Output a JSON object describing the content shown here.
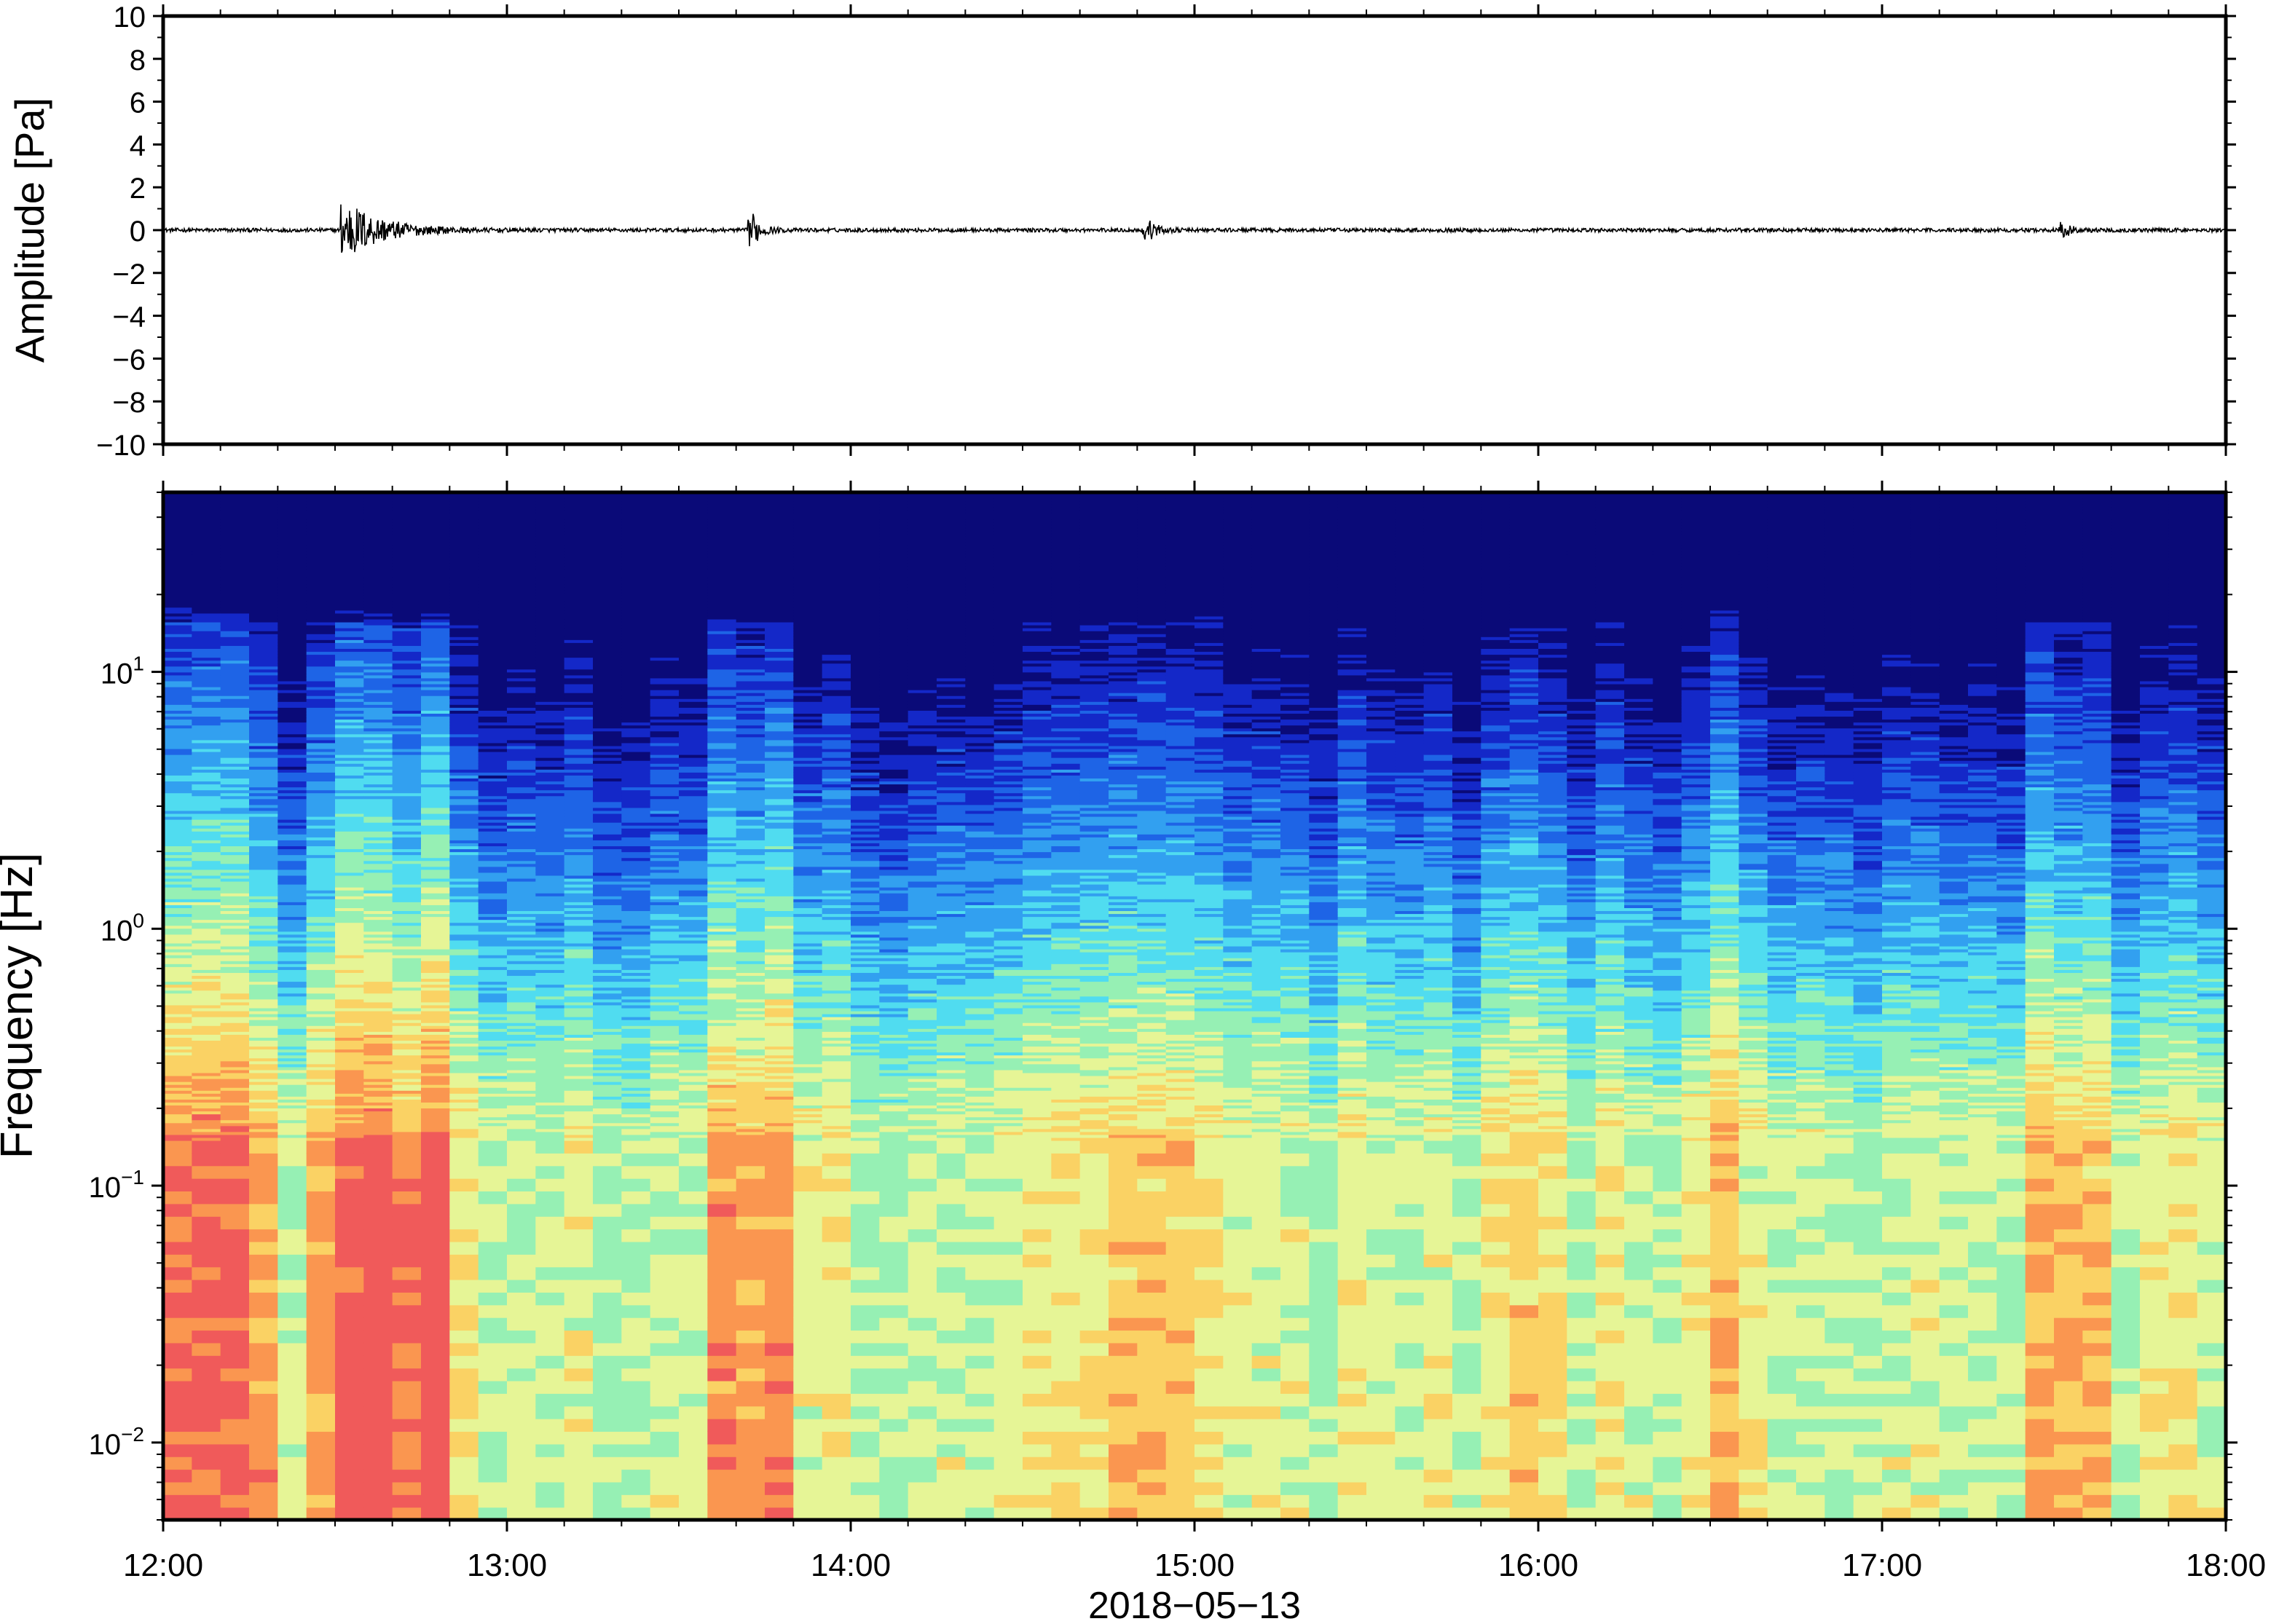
{
  "chart_data": [
    {
      "type": "line",
      "panel": "waveform",
      "title": "",
      "xlabel": "",
      "ylabel": "Amplitude [Pa]",
      "xlim": [
        "12:00",
        "18:00"
      ],
      "ylim": [
        -10,
        10
      ],
      "y_ticks": [
        {
          "value": 10,
          "label": "10"
        },
        {
          "value": 8,
          "label": "8"
        },
        {
          "value": 6,
          "label": "6"
        },
        {
          "value": 4,
          "label": "4"
        },
        {
          "value": 2,
          "label": "2"
        },
        {
          "value": 0,
          "label": "0"
        },
        {
          "value": -2,
          "label": "−2"
        },
        {
          "value": -4,
          "label": "−4"
        },
        {
          "value": -6,
          "label": "−6"
        },
        {
          "value": -8,
          "label": "−8"
        },
        {
          "value": -10,
          "label": "−10"
        }
      ],
      "grid": false,
      "line_color": "#000000",
      "events": [
        {
          "time": "12:32",
          "peak_pa": 1.4
        },
        {
          "time": "13:43",
          "peak_pa": 0.7
        },
        {
          "time": "14:52",
          "peak_pa": 0.5
        },
        {
          "time": "17:32",
          "peak_pa": 0.3
        }
      ]
    },
    {
      "type": "heatmap",
      "panel": "spectrogram",
      "title": "",
      "xlabel": "2018−05−13",
      "ylabel": "Frequency [Hz]",
      "y_scale": "log",
      "ylim": [
        0.005,
        50
      ],
      "x_ticks": [
        "12:00",
        "13:00",
        "14:00",
        "15:00",
        "16:00",
        "17:00",
        "18:00"
      ],
      "y_ticks": [
        {
          "value": 10,
          "base": "10",
          "exp": "1"
        },
        {
          "value": 1,
          "base": "10",
          "exp": "0"
        },
        {
          "value": 0.1,
          "base": "10",
          "exp": "−1"
        },
        {
          "value": 0.01,
          "base": "10",
          "exp": "−2"
        }
      ],
      "colormap": [
        "#0a0a78",
        "#1428c8",
        "#1e64e6",
        "#32a0f0",
        "#50dcf0",
        "#96f0b4",
        "#e6f596",
        "#fad264",
        "#fa9650",
        "#f05a5a"
      ],
      "time_columns": 72,
      "energy_bursts": [
        {
          "start": "12:00",
          "end": "12:20",
          "strength": 0.8
        },
        {
          "start": "12:25",
          "end": "12:40",
          "strength": 0.7
        },
        {
          "start": "12:30",
          "end": "12:48",
          "strength": 1.0
        },
        {
          "start": "13:35",
          "end": "13:48",
          "strength": 0.8
        },
        {
          "start": "14:47",
          "end": "14:58",
          "strength": 0.6
        },
        {
          "start": "15:55",
          "end": "16:05",
          "strength": 0.4
        },
        {
          "start": "16:28",
          "end": "16:35",
          "strength": 0.4
        },
        {
          "start": "17:27",
          "end": "17:38",
          "strength": 0.5
        }
      ]
    }
  ]
}
